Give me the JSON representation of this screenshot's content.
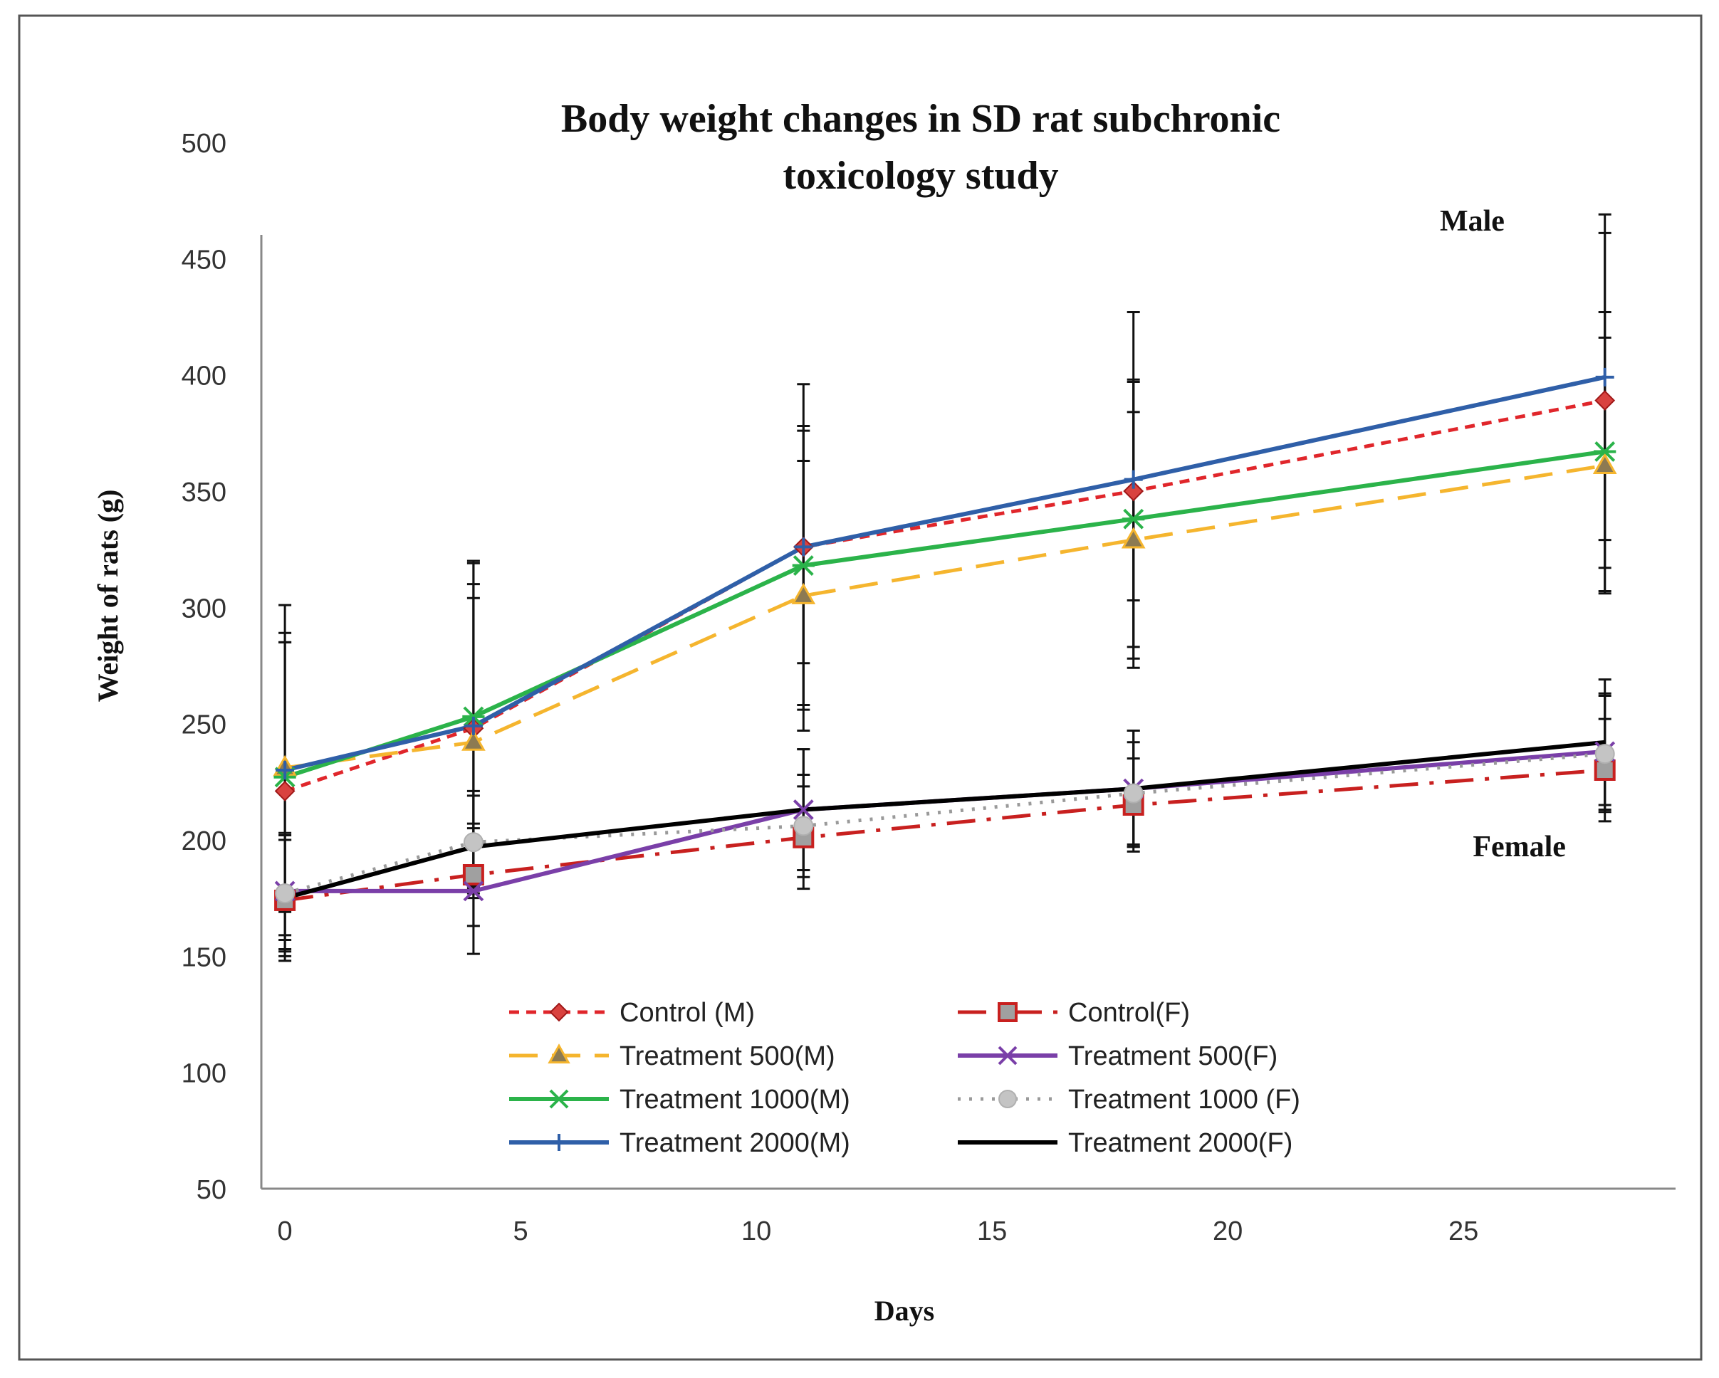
{
  "chart_data": {
    "type": "line",
    "title_lines": [
      "Body weight changes in SD rat subchronic",
      "toxicology study"
    ],
    "xlabel": "Days",
    "ylabel": "Weight of rats (g)",
    "xlim": [
      -0.5,
      29.5
    ],
    "ylim": [
      50,
      500
    ],
    "x_ticks": [
      0,
      5,
      10,
      15,
      20,
      25
    ],
    "y_ticks": [
      50,
      100,
      150,
      200,
      250,
      300,
      350,
      400,
      450,
      500
    ],
    "annotations": [
      {
        "text": "Male",
        "x": 24.5,
        "y": 462
      },
      {
        "text": "Female",
        "x": 25.2,
        "y": 193
      }
    ],
    "x": [
      0,
      4,
      11,
      18,
      28
    ],
    "series": [
      {
        "name": "Control (M)",
        "color": "#e0262b",
        "dash": "dashed",
        "marker": "diamond",
        "values": [
          221,
          248,
          326,
          350,
          389
        ],
        "error": [
          64,
          62,
          50,
          47,
          72
        ]
      },
      {
        "name": "Treatment 500(M)",
        "color": "#f5b52e",
        "dash": "longdash",
        "marker": "triangle",
        "values": [
          231,
          242,
          305,
          329,
          361
        ],
        "error": [
          58,
          62,
          58,
          55,
          55
        ]
      },
      {
        "name": "Treatment 1000(M)",
        "color": "#2bb34a",
        "dash": "solid",
        "marker": "star",
        "values": [
          227,
          253,
          318,
          338,
          367
        ],
        "error": [
          58,
          67,
          60,
          60,
          60
        ]
      },
      {
        "name": "Treatment 2000(M)",
        "color": "#2f5fa8",
        "dash": "solid",
        "marker": "plus",
        "values": [
          230,
          249,
          326,
          355,
          399
        ],
        "error": [
          71,
          70,
          70,
          72,
          70
        ]
      },
      {
        "name": "Control(F)",
        "color": "#c8201f",
        "dash": "dashdot",
        "marker": "square",
        "values": [
          174,
          185,
          201,
          215,
          230
        ],
        "error": [
          26,
          22,
          22,
          20,
          22
        ]
      },
      {
        "name": "Treatment 500(F)",
        "color": "#7a3fa8",
        "dash": "solid",
        "marker": "x",
        "values": [
          178,
          178,
          213,
          222,
          238
        ],
        "error": [
          25,
          27,
          26,
          25,
          25
        ]
      },
      {
        "name": "Treatment 1000 (F)",
        "color": "#9a9a9a",
        "dash": "dotted",
        "marker": "circle",
        "values": [
          177,
          199,
          206,
          220,
          237
        ],
        "error": [
          25,
          22,
          22,
          22,
          25
        ]
      },
      {
        "name": "Treatment 2000(F)",
        "color": "#000000",
        "dash": "solid",
        "marker": "none",
        "values": [
          175,
          197,
          213,
          222,
          242
        ],
        "error": [
          25,
          22,
          26,
          25,
          27
        ]
      }
    ]
  }
}
